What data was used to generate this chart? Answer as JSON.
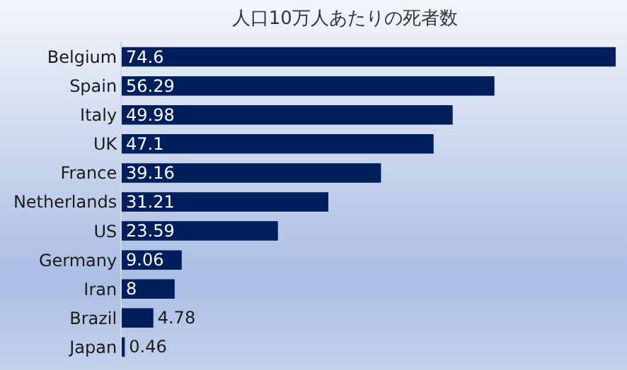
{
  "chart_data": {
    "type": "bar",
    "orientation": "horizontal",
    "title": "人口10万人あたりの死者数",
    "categories": [
      "Belgium",
      "Spain",
      "Italy",
      "UK",
      "France",
      "Netherlands",
      "US",
      "Germany",
      "Iran",
      "Brazil",
      "Japan"
    ],
    "values": [
      74.6,
      56.29,
      49.98,
      47.1,
      39.16,
      31.21,
      23.59,
      9.06,
      8,
      4.78,
      0.46
    ],
    "color": "#001f5c",
    "data_labels": true
  }
}
